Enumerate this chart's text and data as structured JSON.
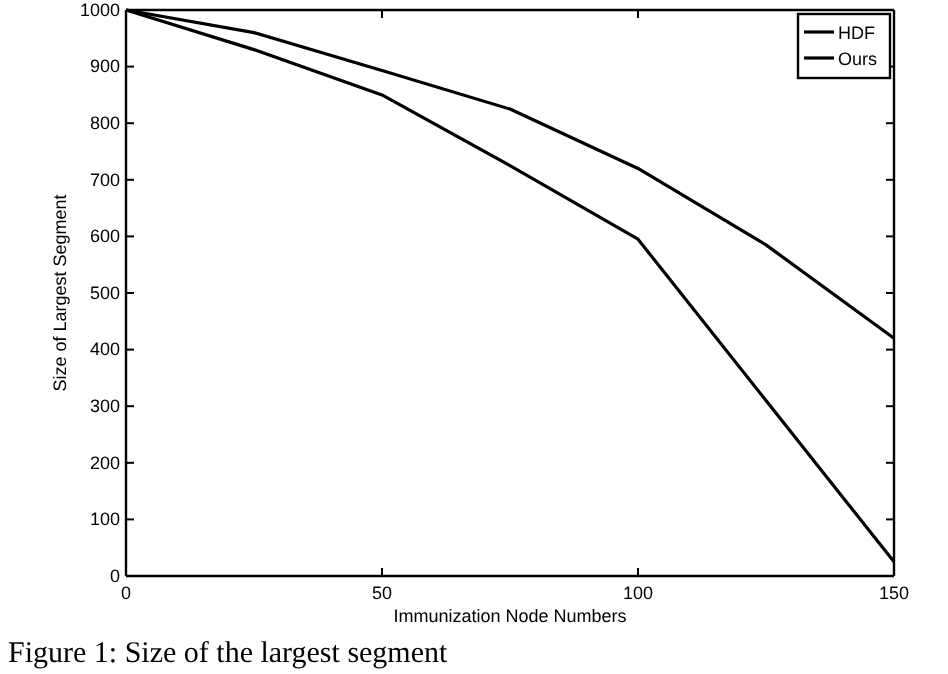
{
  "chart_data": {
    "type": "line",
    "xlabel": "Immunization Node Numbers",
    "ylabel": "Size of Largest Segment",
    "x": [
      0,
      25,
      50,
      75,
      100,
      125,
      150
    ],
    "series": [
      {
        "name": "HDF",
        "color": "#000000",
        "values": [
          1000,
          930,
          850,
          725,
          595,
          310,
          25
        ]
      },
      {
        "name": "Ours",
        "color": "#000000",
        "values": [
          1000,
          960,
          893,
          825,
          720,
          585,
          420
        ]
      }
    ],
    "xlim": [
      0,
      150
    ],
    "xticks": [
      0,
      50,
      100,
      150
    ],
    "ylim": [
      0,
      1000
    ],
    "yticks": [
      0,
      100,
      200,
      300,
      400,
      500,
      600,
      700,
      800,
      900,
      1000
    ],
    "legend": "top right",
    "grid": false,
    "marker": "none",
    "line_style": "solid",
    "annotations": [
      "Figure 1: Size of the largest segment"
    ]
  }
}
